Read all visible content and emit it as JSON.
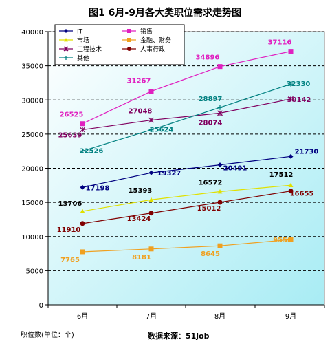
{
  "chart_data": {
    "type": "line",
    "title": "图1 6月-9月各大类职位需求走势图",
    "ylabel": "职位数(单位：个)",
    "source": "数据来源：51job",
    "categories": [
      "6月",
      "7月",
      "8月",
      "9月"
    ],
    "ylim": [
      0,
      40000
    ],
    "yticks": [
      0,
      5000,
      10000,
      15000,
      20000,
      25000,
      30000,
      35000,
      40000
    ],
    "grid": true,
    "legend_position": "top-left",
    "series": [
      {
        "name": "IT",
        "values": [
          17198,
          19327,
          20491,
          21730
        ],
        "color": "#000080",
        "marker": "diamond"
      },
      {
        "name": "销售",
        "values": [
          26525,
          31267,
          34896,
          37116
        ],
        "color": "#e020c0",
        "marker": "square"
      },
      {
        "name": "市场",
        "values": [
          13706,
          15393,
          16572,
          17512
        ],
        "color": "#e0e000",
        "marker": "triangle"
      },
      {
        "name": "金融、财务",
        "values": [
          7765,
          8181,
          8645,
          9558
        ],
        "color": "#f0a020",
        "marker": "square"
      },
      {
        "name": "工程技术",
        "values": [
          25639,
          27048,
          28074,
          30142
        ],
        "color": "#800060",
        "marker": "x"
      },
      {
        "name": "人事行政",
        "values": [
          11910,
          13424,
          15012,
          16655
        ],
        "color": "#800000",
        "marker": "circle"
      },
      {
        "name": "其他",
        "values": [
          22526,
          25624,
          28897,
          32330
        ],
        "color": "#008080",
        "marker": "plus"
      }
    ]
  }
}
